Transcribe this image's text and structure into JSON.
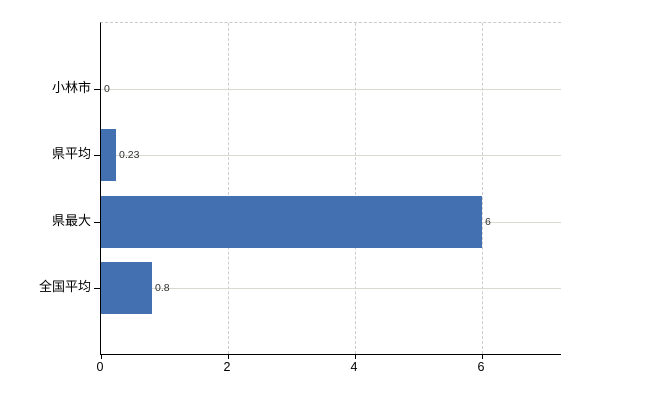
{
  "chart_data": {
    "type": "bar",
    "orientation": "horizontal",
    "title": "",
    "xlabel": "",
    "ylabel": "",
    "categories": [
      "小林市",
      "県平均",
      "県最大",
      "全国平均"
    ],
    "values": [
      0,
      0.23,
      6,
      0.8
    ],
    "value_labels": [
      "0",
      "0.23",
      "6",
      "0.8"
    ],
    "x_ticks": [
      0,
      2,
      4,
      6
    ],
    "x_tick_labels": [
      "0",
      "2",
      "4",
      "6"
    ],
    "xlim": [
      0,
      7.25
    ],
    "grid": true,
    "legend": "none",
    "bar_color": "#4270b0",
    "axis_color": "#000000",
    "gridline_color": "#d9d9d1",
    "background_color": "#ffffff"
  }
}
